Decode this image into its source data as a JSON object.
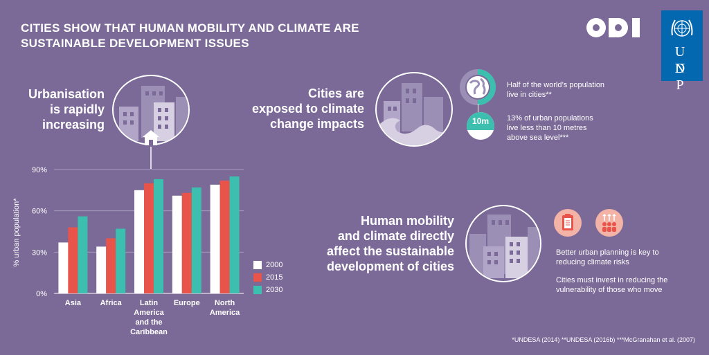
{
  "title_lines": [
    "CITIES SHOW THAT HUMAN MOBILITY AND CLIMATE ARE",
    "SUSTAINABLE DEVELOPMENT ISSUES"
  ],
  "logos": {
    "odi": "ODI",
    "undp_letters": [
      "U N",
      "D P"
    ]
  },
  "section1": {
    "heading_lines": [
      "Urbanisation",
      "is rapidly",
      "increasing"
    ]
  },
  "section2": {
    "heading_lines": [
      "Cities are",
      "exposed to climate",
      "change impacts"
    ],
    "fact1_lines": [
      "Half of the world’s population",
      "live in cities**"
    ],
    "badge": "10m",
    "fact2_lines": [
      "13% of urban populations",
      "live less than 10 metres",
      "above sea level***"
    ]
  },
  "section3": {
    "heading_lines": [
      "Human mobility",
      "and climate directly",
      "affect the sustainable",
      "development of cities"
    ],
    "fact1_lines": [
      "Better urban planning is key to",
      "reducing climate risks"
    ],
    "fact2_lines": [
      "Cities must invest in reducing the",
      "vulnerability of those who move"
    ]
  },
  "footnote": "*UNDESA (2014)  **UNDESA (2016b)  ***McGranahan et al. (2007)",
  "colors": {
    "background": "#7b6a97",
    "s2000": "#ffffff",
    "s2015": "#e8534a",
    "s2030": "#3dbfb0",
    "undp_blue": "#0468b1"
  },
  "icons": [
    "odi-logo",
    "undp-logo",
    "buildings-icon",
    "house-icon",
    "wave-icon",
    "globe-icon",
    "clipboard-icon",
    "people-arrows-icon"
  ],
  "chart_data": {
    "type": "bar",
    "ylabel": "% urban population*",
    "ylim": [
      0,
      90
    ],
    "yticks": [
      0,
      30,
      60,
      90
    ],
    "ytick_labels": [
      "0%",
      "30%",
      "60%",
      "90%"
    ],
    "categories": [
      "Asia",
      "Africa",
      "Latin America and the Caribbean",
      "Europe",
      "North America"
    ],
    "category_label_lines": [
      [
        "Asia"
      ],
      [
        "Africa"
      ],
      [
        "Latin",
        "America",
        "and the",
        "Caribbean"
      ],
      [
        "Europe"
      ],
      [
        "North",
        "America"
      ]
    ],
    "series": [
      {
        "name": "2000",
        "values": [
          37,
          34,
          75,
          71,
          79
        ]
      },
      {
        "name": "2015",
        "values": [
          48,
          40,
          80,
          73,
          82
        ]
      },
      {
        "name": "2030",
        "values": [
          56,
          47,
          83,
          77,
          85
        ]
      }
    ],
    "legend_position": "right",
    "grid": true
  }
}
